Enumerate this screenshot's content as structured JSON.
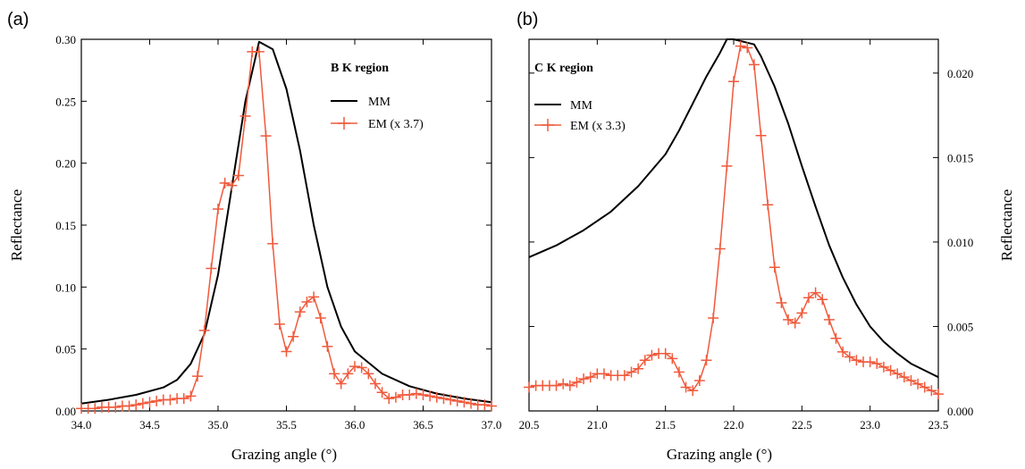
{
  "chart_data": [
    {
      "panel": "(a)",
      "type": "line",
      "annotation": "B K region",
      "xlabel": "Grazing angle (°)",
      "ylabel": "Reflectance",
      "xlim": [
        34.0,
        37.0
      ],
      "ylim": [
        0.0,
        0.3
      ],
      "xticks": [
        "34.0",
        "34.5",
        "35.0",
        "35.5",
        "36.0",
        "36.5",
        "37.0"
      ],
      "yticks": [
        "0.00",
        "0.05",
        "0.10",
        "0.15",
        "0.20",
        "0.25",
        "0.30"
      ],
      "yaxis_side": "left",
      "legend_position": "upper-right",
      "series": [
        {
          "name": "MM",
          "color": "#000000",
          "marker": "none",
          "x": [
            34.0,
            34.2,
            34.4,
            34.6,
            34.7,
            34.8,
            34.9,
            35.0,
            35.1,
            35.2,
            35.3,
            35.4,
            35.5,
            35.6,
            35.7,
            35.8,
            35.9,
            36.0,
            36.2,
            36.4,
            36.6,
            36.8,
            37.0
          ],
          "y": [
            0.006,
            0.009,
            0.013,
            0.019,
            0.025,
            0.038,
            0.062,
            0.11,
            0.18,
            0.25,
            0.298,
            0.292,
            0.26,
            0.21,
            0.15,
            0.1,
            0.068,
            0.048,
            0.03,
            0.02,
            0.014,
            0.01,
            0.007
          ]
        },
        {
          "name": "EM (x 3.7)",
          "color": "#f05a3c",
          "marker": "plus",
          "x": [
            34.0,
            34.05,
            34.1,
            34.15,
            34.2,
            34.25,
            34.3,
            34.35,
            34.4,
            34.45,
            34.5,
            34.55,
            34.6,
            34.65,
            34.7,
            34.75,
            34.8,
            34.85,
            34.9,
            34.95,
            35.0,
            35.05,
            35.1,
            35.15,
            35.2,
            35.25,
            35.3,
            35.35,
            35.4,
            35.45,
            35.5,
            35.55,
            35.6,
            35.65,
            35.7,
            35.75,
            35.8,
            35.85,
            35.9,
            35.95,
            36.0,
            36.05,
            36.1,
            36.15,
            36.2,
            36.25,
            36.3,
            36.35,
            36.4,
            36.45,
            36.5,
            36.55,
            36.6,
            36.65,
            36.7,
            36.75,
            36.8,
            36.85,
            36.9,
            36.95,
            37.0
          ],
          "y": [
            0.002,
            0.002,
            0.002,
            0.003,
            0.003,
            0.003,
            0.004,
            0.004,
            0.005,
            0.006,
            0.007,
            0.008,
            0.009,
            0.009,
            0.01,
            0.01,
            0.012,
            0.028,
            0.065,
            0.115,
            0.163,
            0.184,
            0.182,
            0.19,
            0.238,
            0.29,
            0.29,
            0.222,
            0.135,
            0.07,
            0.048,
            0.06,
            0.08,
            0.088,
            0.092,
            0.075,
            0.052,
            0.03,
            0.022,
            0.03,
            0.036,
            0.035,
            0.03,
            0.022,
            0.015,
            0.01,
            0.011,
            0.013,
            0.013,
            0.014,
            0.013,
            0.012,
            0.011,
            0.01,
            0.009,
            0.008,
            0.007,
            0.006,
            0.005,
            0.005,
            0.004
          ]
        }
      ]
    },
    {
      "panel": "(b)",
      "type": "line",
      "annotation": "C K region",
      "xlabel": "Grazing angle (°)",
      "ylabel": "Reflectance",
      "xlim": [
        20.5,
        23.5
      ],
      "ylim": [
        0.0,
        0.022
      ],
      "xticks": [
        "20.5",
        "21.0",
        "21.5",
        "22.0",
        "22.5",
        "23.0",
        "23.5"
      ],
      "yticks": [
        "0.000",
        "0.005",
        "0.010",
        "0.015",
        "0.020"
      ],
      "yaxis_side": "right",
      "legend_position": "upper-left",
      "series": [
        {
          "name": "MM",
          "color": "#000000",
          "marker": "none",
          "x": [
            20.5,
            20.7,
            20.9,
            21.1,
            21.3,
            21.5,
            21.6,
            21.7,
            21.8,
            21.9,
            21.95,
            22.0,
            22.1,
            22.15,
            22.2,
            22.3,
            22.4,
            22.5,
            22.6,
            22.7,
            22.8,
            22.9,
            23.0,
            23.1,
            23.2,
            23.3,
            23.4,
            23.5
          ],
          "y": [
            0.0091,
            0.0098,
            0.0107,
            0.0118,
            0.0133,
            0.0152,
            0.0166,
            0.0182,
            0.0198,
            0.0212,
            0.022,
            0.022,
            0.0218,
            0.0217,
            0.021,
            0.0192,
            0.017,
            0.0145,
            0.0121,
            0.0098,
            0.0079,
            0.0063,
            0.005,
            0.0041,
            0.0034,
            0.0028,
            0.0024,
            0.002
          ]
        },
        {
          "name": "EM (x 3.3)",
          "color": "#f05a3c",
          "marker": "plus",
          "x": [
            20.5,
            20.55,
            20.6,
            20.65,
            20.7,
            20.75,
            20.8,
            20.85,
            20.9,
            20.95,
            21.0,
            21.05,
            21.1,
            21.15,
            21.2,
            21.25,
            21.3,
            21.35,
            21.4,
            21.45,
            21.5,
            21.55,
            21.6,
            21.65,
            21.7,
            21.75,
            21.8,
            21.85,
            21.9,
            21.95,
            22.0,
            22.05,
            22.1,
            22.15,
            22.2,
            22.25,
            22.3,
            22.35,
            22.4,
            22.45,
            22.5,
            22.55,
            22.6,
            22.65,
            22.7,
            22.75,
            22.8,
            22.85,
            22.9,
            22.95,
            23.0,
            23.05,
            23.1,
            23.15,
            23.2,
            23.25,
            23.3,
            23.35,
            23.4,
            23.45,
            23.5
          ],
          "y": [
            0.0014,
            0.0015,
            0.0015,
            0.0015,
            0.0015,
            0.0016,
            0.0015,
            0.0017,
            0.0019,
            0.002,
            0.0022,
            0.0022,
            0.0021,
            0.0021,
            0.0021,
            0.0023,
            0.0025,
            0.003,
            0.0033,
            0.0034,
            0.0034,
            0.0031,
            0.0023,
            0.0014,
            0.0012,
            0.0018,
            0.003,
            0.0055,
            0.0096,
            0.0145,
            0.0195,
            0.0216,
            0.0215,
            0.0205,
            0.0163,
            0.0122,
            0.0085,
            0.0064,
            0.0054,
            0.0052,
            0.0058,
            0.0067,
            0.007,
            0.0066,
            0.0054,
            0.0043,
            0.0035,
            0.0032,
            0.003,
            0.0029,
            0.0029,
            0.0028,
            0.0026,
            0.0024,
            0.0022,
            0.002,
            0.0018,
            0.0016,
            0.0014,
            0.0012,
            0.001
          ]
        }
      ]
    }
  ]
}
